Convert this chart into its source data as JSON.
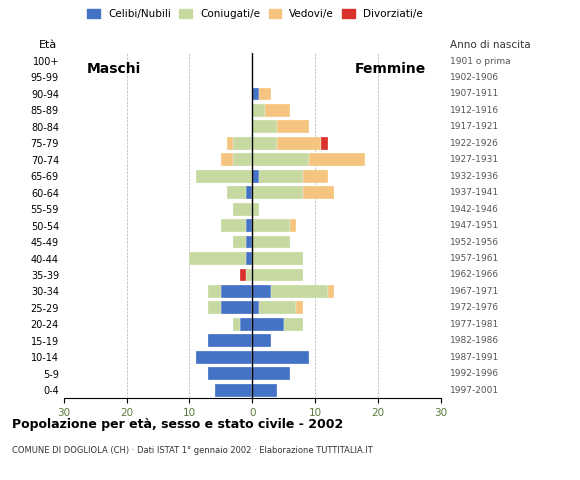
{
  "age_groups": [
    "0-4",
    "5-9",
    "10-14",
    "15-19",
    "20-24",
    "25-29",
    "30-34",
    "35-39",
    "40-44",
    "45-49",
    "50-54",
    "55-59",
    "60-64",
    "65-69",
    "70-74",
    "75-79",
    "80-84",
    "85-89",
    "90-94",
    "95-99",
    "100+"
  ],
  "birth_years": [
    "1997-2001",
    "1992-1996",
    "1987-1991",
    "1982-1986",
    "1977-1981",
    "1972-1976",
    "1967-1971",
    "1962-1966",
    "1957-1961",
    "1952-1956",
    "1947-1951",
    "1942-1946",
    "1937-1941",
    "1932-1936",
    "1927-1931",
    "1922-1926",
    "1917-1921",
    "1912-1916",
    "1907-1911",
    "1902-1906",
    "1901 o prima"
  ],
  "males": {
    "celibe": [
      6,
      7,
      9,
      7,
      2,
      5,
      5,
      0,
      1,
      1,
      1,
      0,
      1,
      0,
      0,
      0,
      0,
      0,
      0,
      0,
      0
    ],
    "coniugato": [
      0,
      0,
      0,
      0,
      1,
      2,
      2,
      1,
      9,
      2,
      4,
      3,
      3,
      9,
      3,
      3,
      0,
      0,
      0,
      0,
      0
    ],
    "vedovo": [
      0,
      0,
      0,
      0,
      0,
      0,
      0,
      0,
      0,
      0,
      0,
      0,
      0,
      0,
      2,
      1,
      0,
      0,
      0,
      0,
      0
    ],
    "divorziato": [
      0,
      0,
      0,
      0,
      0,
      0,
      0,
      1,
      0,
      0,
      0,
      0,
      0,
      0,
      0,
      0,
      0,
      0,
      0,
      0,
      0
    ]
  },
  "females": {
    "celibe": [
      4,
      6,
      9,
      3,
      5,
      1,
      3,
      0,
      0,
      0,
      0,
      0,
      0,
      1,
      0,
      0,
      0,
      0,
      1,
      0,
      0
    ],
    "coniugato": [
      0,
      0,
      0,
      0,
      3,
      6,
      9,
      8,
      8,
      6,
      6,
      1,
      8,
      7,
      9,
      4,
      4,
      2,
      0,
      0,
      0
    ],
    "vedovo": [
      0,
      0,
      0,
      0,
      0,
      1,
      1,
      0,
      0,
      0,
      1,
      0,
      5,
      4,
      9,
      7,
      5,
      4,
      2,
      0,
      0
    ],
    "divorziato": [
      0,
      0,
      0,
      0,
      0,
      0,
      0,
      0,
      0,
      0,
      0,
      0,
      0,
      0,
      0,
      1,
      0,
      0,
      0,
      0,
      0
    ]
  },
  "colors": {
    "celibe": "#4472c4",
    "coniugato": "#c5d9a0",
    "vedovo": "#f5c47f",
    "divorziato": "#d9312b"
  },
  "xlim": 30,
  "title": "Popolazione per età, sesso e stato civile - 2002",
  "subtitle": "COMUNE DI DOGLIOLA (CH) · Dati ISTAT 1° gennaio 2002 · Elaborazione TUTTITALIA.IT",
  "legend_labels": [
    "Celibi/Nubili",
    "Coniugati/e",
    "Vedovi/e",
    "Divorziati/e"
  ],
  "label_eta": "Età",
  "label_anno": "Anno di nascita",
  "label_maschi": "Maschi",
  "label_femmine": "Femmine"
}
